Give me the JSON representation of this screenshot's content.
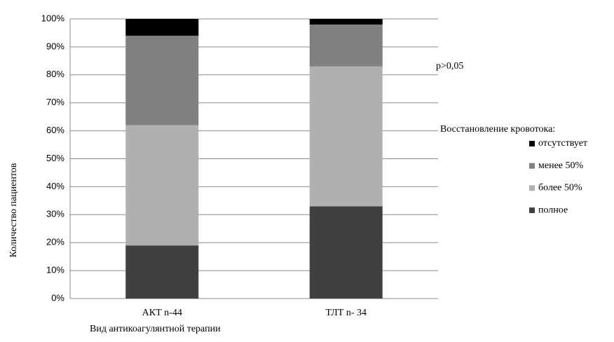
{
  "chart_data": {
    "type": "stacked_bar",
    "x_label": "Вид антикоагулянтной терапии",
    "y_label": "Количество пациентов",
    "annotation": "p>0,05",
    "legend_title": "Восстановление кровотока:",
    "legend": "right",
    "grid": true,
    "categories": [
      "АКТ n-44",
      "ТЛТ n- 34"
    ],
    "series": [
      {
        "name": "полное",
        "color": "#404040",
        "values": [
          19,
          33
        ]
      },
      {
        "name": "более 50%",
        "color": "#b0b0b0",
        "values": [
          43,
          50
        ]
      },
      {
        "name": "менее 50%",
        "color": "#808080",
        "values": [
          32,
          15
        ]
      },
      {
        "name": "отсутствует",
        "color": "#000000",
        "values": [
          6,
          2
        ]
      }
    ],
    "ylim": [
      0,
      100
    ],
    "yticks": [
      {
        "value": 0,
        "label": "0%"
      },
      {
        "value": 10,
        "label": "10%"
      },
      {
        "value": 20,
        "label": "20%"
      },
      {
        "value": 30,
        "label": "30%"
      },
      {
        "value": 40,
        "label": "40%"
      },
      {
        "value": 50,
        "label": "50%"
      },
      {
        "value": 60,
        "label": "60%"
      },
      {
        "value": 70,
        "label": "70%"
      },
      {
        "value": 80,
        "label": "80%"
      },
      {
        "value": 90,
        "label": "90%"
      },
      {
        "value": 100,
        "label": "100%"
      }
    ]
  }
}
